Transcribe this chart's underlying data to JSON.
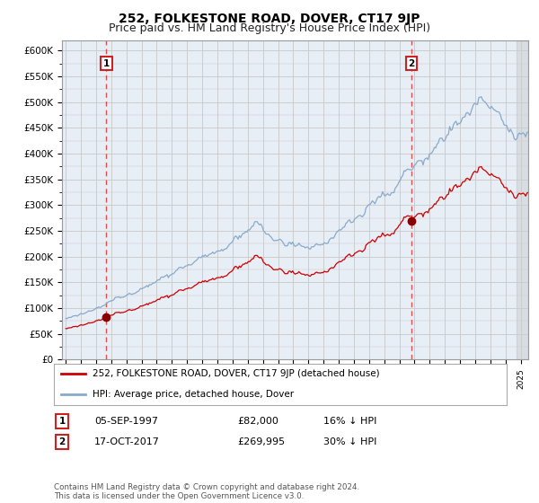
{
  "title": "252, FOLKESTONE ROAD, DOVER, CT17 9JP",
  "subtitle": "Price paid vs. HM Land Registry's House Price Index (HPI)",
  "ylim": [
    0,
    620000
  ],
  "yticks": [
    0,
    50000,
    100000,
    150000,
    200000,
    250000,
    300000,
    350000,
    400000,
    450000,
    500000,
    550000,
    600000
  ],
  "xlim_start": 1994.75,
  "xlim_end": 2025.5,
  "sale1_year": 1997.67,
  "sale1_price": 82000,
  "sale2_year": 2017.79,
  "sale2_price": 269995,
  "red_line_color": "#cc0000",
  "blue_line_color": "#88aacc",
  "dashed_line_color": "#dd3333",
  "marker_color": "#880000",
  "grid_color": "#cccccc",
  "background_color": "#ffffff",
  "plot_bg_color": "#e8eef5",
  "legend_label_red": "252, FOLKESTONE ROAD, DOVER, CT17 9JP (detached house)",
  "legend_label_blue": "HPI: Average price, detached house, Dover",
  "annotation1": [
    "1",
    "05-SEP-1997",
    "£82,000",
    "16% ↓ HPI"
  ],
  "annotation2": [
    "2",
    "17-OCT-2017",
    "£269,995",
    "30% ↓ HPI"
  ],
  "footer": "Contains HM Land Registry data © Crown copyright and database right 2024.\nThis data is licensed under the Open Government Licence v3.0.",
  "title_fontsize": 10,
  "subtitle_fontsize": 9,
  "tick_fontsize": 7.5
}
